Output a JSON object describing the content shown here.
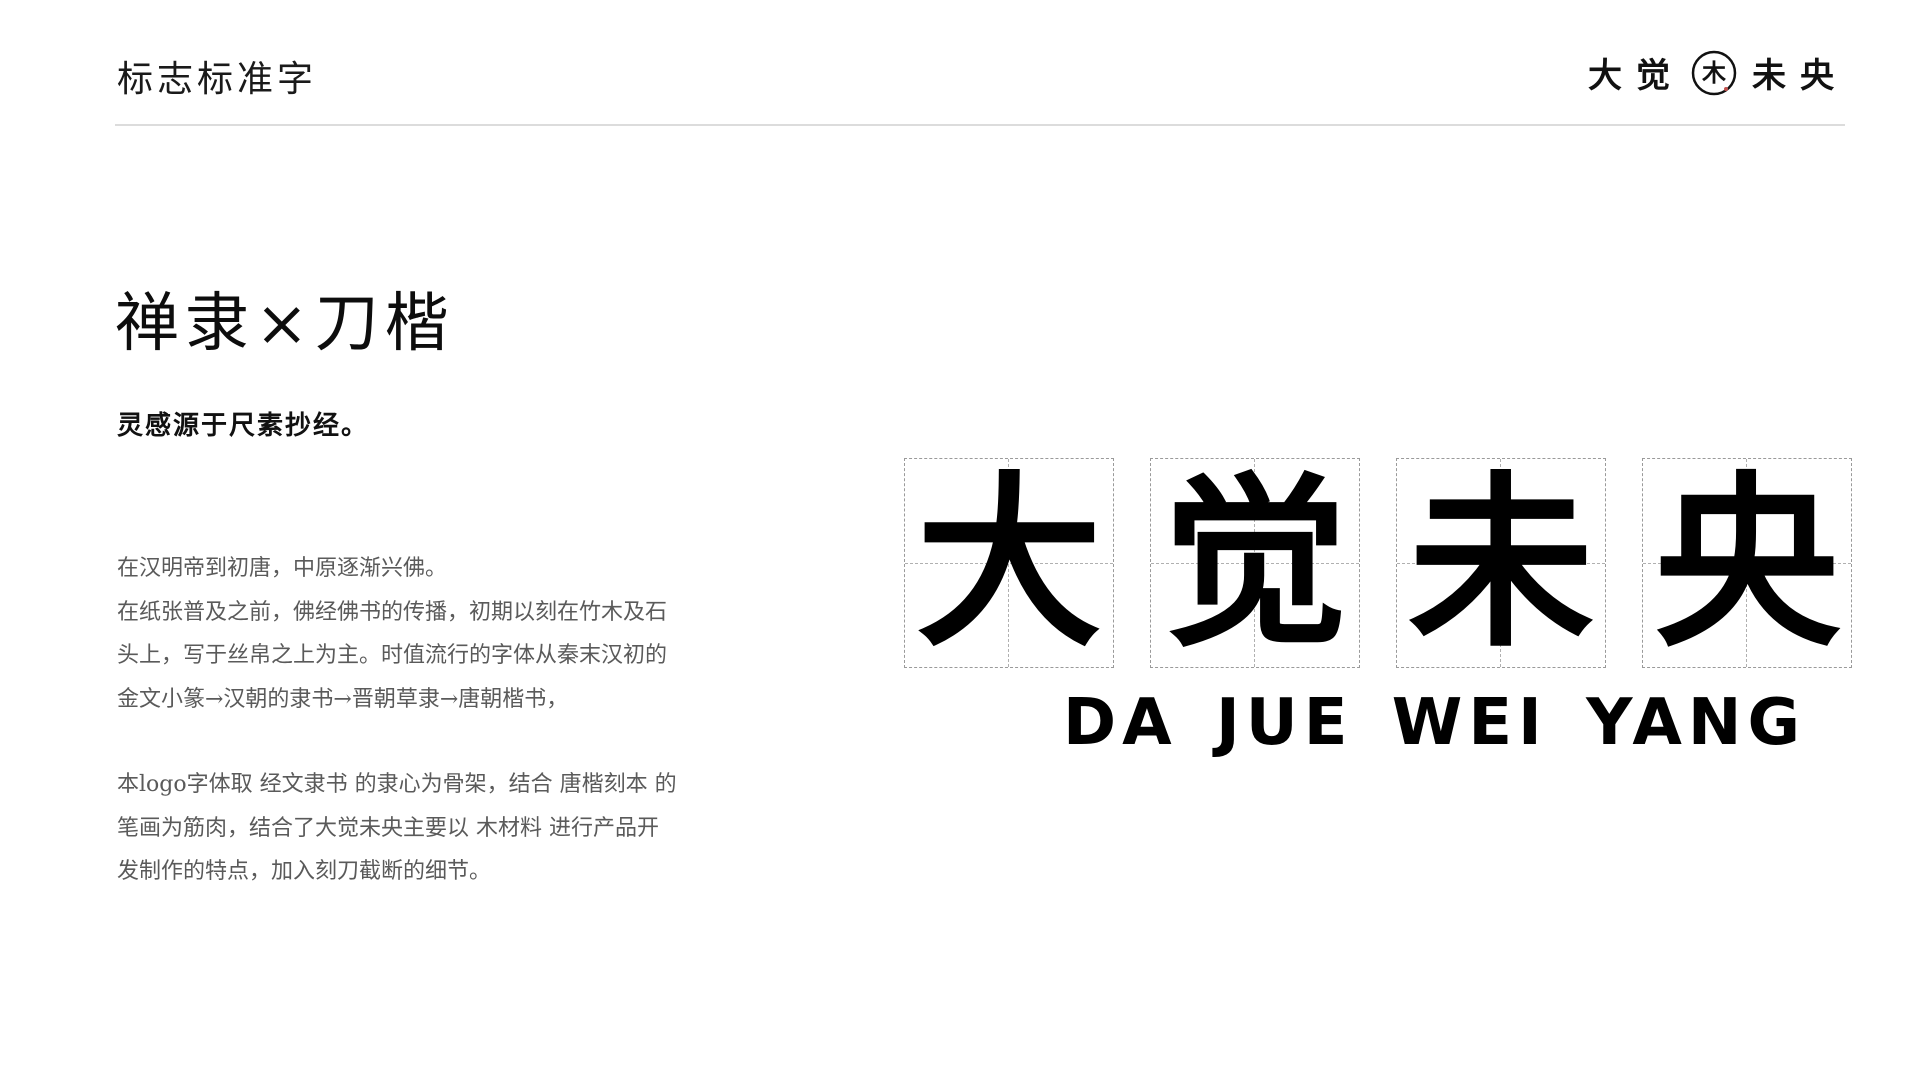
{
  "header": {
    "title": "标志标准字",
    "logo": {
      "chars_before": "大觉",
      "seal_char": "木",
      "chars_after": "未央"
    }
  },
  "main": {
    "headline": "禅隶×刀楷",
    "tagline": "灵感源于尺素抄经。",
    "paragraph_1": [
      "在汉明帝到初唐，中原逐渐兴佛。",
      "在纸张普及之前，佛经佛书的传播，初期以刻在竹木及石",
      "头上，写于丝帛之上为主。时值流行的字体从秦末汉初的",
      "金文小篆→汉朝的隶书→晋朝草隶→唐朝楷书，"
    ],
    "paragraph_2": [
      "本logo字体取 经文隶书 的隶心为骨架，结合 唐楷刻本 的",
      "笔画为筋肉，结合了大觉未央主要以  木材料  进行产品开",
      "发制作的特点，加入刻刀截断的细节。"
    ]
  },
  "wordmark": {
    "characters": [
      "大",
      "觉",
      "未",
      "央"
    ],
    "romanization": "DA JUE WEI YANG"
  },
  "colors": {
    "background": "#ffffff",
    "text_primary": "#111111",
    "text_body": "#5a5a5a",
    "divider": "#dcdcdc",
    "grid_dash": "#9a9a9a",
    "seal_accent": "#c0504d"
  }
}
